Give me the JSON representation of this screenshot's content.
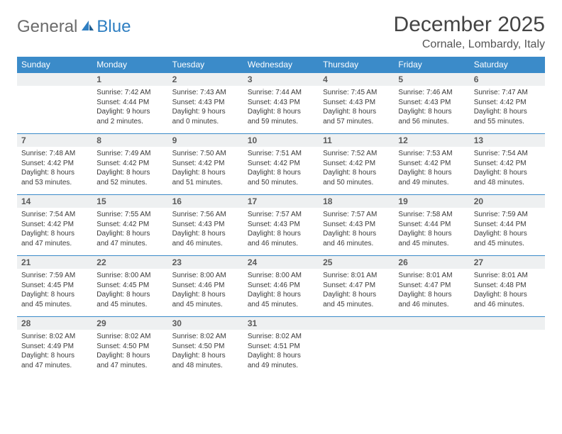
{
  "brand": {
    "left": "General",
    "right": "Blue"
  },
  "title": "December 2025",
  "location": "Cornale, Lombardy, Italy",
  "colors": {
    "header_bg": "#3b8bc9",
    "header_text": "#ffffff",
    "daynum_bg": "#eef0f1",
    "row_border": "#3b8bc9",
    "logo_blue": "#2f7fc2",
    "logo_gray": "#6b6b6b"
  },
  "weekdays": [
    "Sunday",
    "Monday",
    "Tuesday",
    "Wednesday",
    "Thursday",
    "Friday",
    "Saturday"
  ],
  "weeks": [
    [
      null,
      {
        "n": "1",
        "sr": "7:42 AM",
        "ss": "4:44 PM",
        "dl": "9 hours and 2 minutes."
      },
      {
        "n": "2",
        "sr": "7:43 AM",
        "ss": "4:43 PM",
        "dl": "9 hours and 0 minutes."
      },
      {
        "n": "3",
        "sr": "7:44 AM",
        "ss": "4:43 PM",
        "dl": "8 hours and 59 minutes."
      },
      {
        "n": "4",
        "sr": "7:45 AM",
        "ss": "4:43 PM",
        "dl": "8 hours and 57 minutes."
      },
      {
        "n": "5",
        "sr": "7:46 AM",
        "ss": "4:43 PM",
        "dl": "8 hours and 56 minutes."
      },
      {
        "n": "6",
        "sr": "7:47 AM",
        "ss": "4:42 PM",
        "dl": "8 hours and 55 minutes."
      }
    ],
    [
      {
        "n": "7",
        "sr": "7:48 AM",
        "ss": "4:42 PM",
        "dl": "8 hours and 53 minutes."
      },
      {
        "n": "8",
        "sr": "7:49 AM",
        "ss": "4:42 PM",
        "dl": "8 hours and 52 minutes."
      },
      {
        "n": "9",
        "sr": "7:50 AM",
        "ss": "4:42 PM",
        "dl": "8 hours and 51 minutes."
      },
      {
        "n": "10",
        "sr": "7:51 AM",
        "ss": "4:42 PM",
        "dl": "8 hours and 50 minutes."
      },
      {
        "n": "11",
        "sr": "7:52 AM",
        "ss": "4:42 PM",
        "dl": "8 hours and 50 minutes."
      },
      {
        "n": "12",
        "sr": "7:53 AM",
        "ss": "4:42 PM",
        "dl": "8 hours and 49 minutes."
      },
      {
        "n": "13",
        "sr": "7:54 AM",
        "ss": "4:42 PM",
        "dl": "8 hours and 48 minutes."
      }
    ],
    [
      {
        "n": "14",
        "sr": "7:54 AM",
        "ss": "4:42 PM",
        "dl": "8 hours and 47 minutes."
      },
      {
        "n": "15",
        "sr": "7:55 AM",
        "ss": "4:42 PM",
        "dl": "8 hours and 47 minutes."
      },
      {
        "n": "16",
        "sr": "7:56 AM",
        "ss": "4:43 PM",
        "dl": "8 hours and 46 minutes."
      },
      {
        "n": "17",
        "sr": "7:57 AM",
        "ss": "4:43 PM",
        "dl": "8 hours and 46 minutes."
      },
      {
        "n": "18",
        "sr": "7:57 AM",
        "ss": "4:43 PM",
        "dl": "8 hours and 46 minutes."
      },
      {
        "n": "19",
        "sr": "7:58 AM",
        "ss": "4:44 PM",
        "dl": "8 hours and 45 minutes."
      },
      {
        "n": "20",
        "sr": "7:59 AM",
        "ss": "4:44 PM",
        "dl": "8 hours and 45 minutes."
      }
    ],
    [
      {
        "n": "21",
        "sr": "7:59 AM",
        "ss": "4:45 PM",
        "dl": "8 hours and 45 minutes."
      },
      {
        "n": "22",
        "sr": "8:00 AM",
        "ss": "4:45 PM",
        "dl": "8 hours and 45 minutes."
      },
      {
        "n": "23",
        "sr": "8:00 AM",
        "ss": "4:46 PM",
        "dl": "8 hours and 45 minutes."
      },
      {
        "n": "24",
        "sr": "8:00 AM",
        "ss": "4:46 PM",
        "dl": "8 hours and 45 minutes."
      },
      {
        "n": "25",
        "sr": "8:01 AM",
        "ss": "4:47 PM",
        "dl": "8 hours and 45 minutes."
      },
      {
        "n": "26",
        "sr": "8:01 AM",
        "ss": "4:47 PM",
        "dl": "8 hours and 46 minutes."
      },
      {
        "n": "27",
        "sr": "8:01 AM",
        "ss": "4:48 PM",
        "dl": "8 hours and 46 minutes."
      }
    ],
    [
      {
        "n": "28",
        "sr": "8:02 AM",
        "ss": "4:49 PM",
        "dl": "8 hours and 47 minutes."
      },
      {
        "n": "29",
        "sr": "8:02 AM",
        "ss": "4:50 PM",
        "dl": "8 hours and 47 minutes."
      },
      {
        "n": "30",
        "sr": "8:02 AM",
        "ss": "4:50 PM",
        "dl": "8 hours and 48 minutes."
      },
      {
        "n": "31",
        "sr": "8:02 AM",
        "ss": "4:51 PM",
        "dl": "8 hours and 49 minutes."
      },
      null,
      null,
      null
    ]
  ],
  "labels": {
    "sunrise": "Sunrise: ",
    "sunset": "Sunset: ",
    "daylight": "Daylight: "
  }
}
